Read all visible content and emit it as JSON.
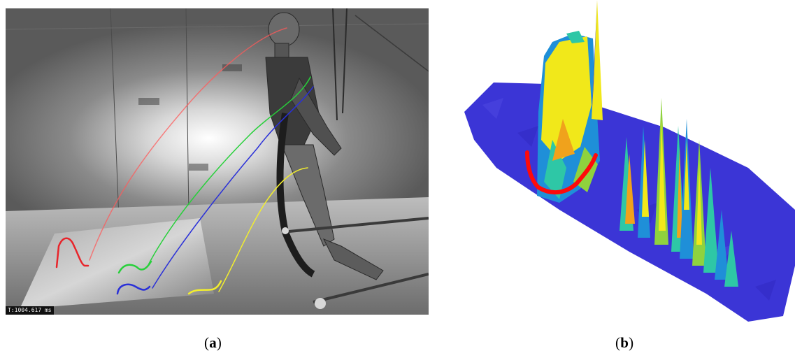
{
  "figure": {
    "panels": [
      {
        "id": "a",
        "caption_open": "(",
        "caption_letter": "a",
        "caption_close": ")",
        "timestamp": "T:1004.617 ms",
        "trajectory_colors": {
          "red": "#e8242a",
          "green": "#27d03a",
          "blue": "#2a30d8",
          "yellow": "#f2ee2e"
        }
      },
      {
        "id": "b",
        "caption_open": "(",
        "caption_letter": "b",
        "caption_close": ")",
        "surface_colors": {
          "base": "#3b35d6",
          "mid_low": "#1f8fd8",
          "mid": "#2ec7a6",
          "mid_high": "#8fd23e",
          "high": "#f1e81a",
          "peak_orange": "#f0a21c",
          "trace_red": "#ff0a0a"
        }
      }
    ]
  }
}
